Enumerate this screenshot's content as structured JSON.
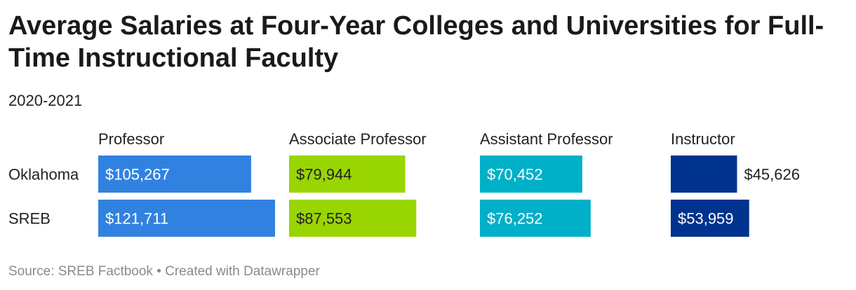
{
  "title": "Average Salaries at Four-Year Colleges and Universities for Full-Time Instructional Faculty",
  "subtitle": "2020-2021",
  "source": "Source: SREB Factbook • Created with Datawrapper",
  "chart_data": {
    "type": "bar",
    "layout": "small-multiples",
    "categories": [
      "Oklahoma",
      "SREB"
    ],
    "panels": [
      {
        "name": "Professor",
        "color": "#3182e0",
        "values": [
          105267,
          121711
        ],
        "labels": [
          "$105,267",
          "$121,711"
        ]
      },
      {
        "name": "Associate Professor",
        "color": "#99d500",
        "values": [
          79944,
          87553
        ],
        "labels": [
          "$79,944",
          "$87,553"
        ]
      },
      {
        "name": "Assistant Professor",
        "color": "#00b0c8",
        "values": [
          70452,
          76252
        ],
        "labels": [
          "$70,452",
          "$76,252"
        ]
      },
      {
        "name": "Instructor",
        "color": "#00338d",
        "values": [
          45626,
          53959
        ],
        "labels": [
          "$45,626",
          "$53,959"
        ]
      }
    ],
    "label_colors": {
      "Professor": "#ffffff",
      "Associate Professor": "#222222",
      "Assistant Professor": "#ffffff",
      "Instructor": "#ffffff"
    },
    "xlim": [
      0,
      121711
    ],
    "grid": false,
    "legend": "none"
  }
}
